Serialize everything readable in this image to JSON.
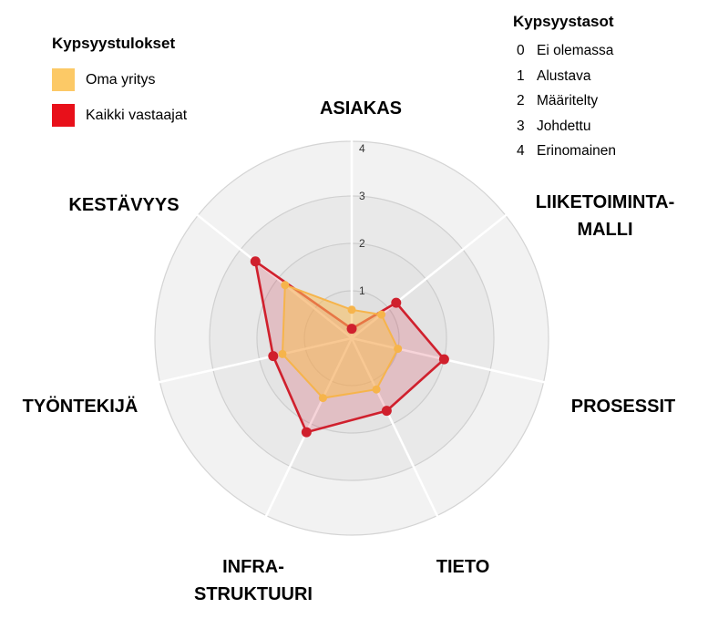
{
  "legend": {
    "title": "Kypsyystulokset",
    "items": [
      {
        "label": "Oma yritys",
        "color": "#fcc966"
      },
      {
        "label": "Kaikki vastaajat",
        "color": "#e8101a"
      }
    ]
  },
  "levels": {
    "title": "Kypsyystasot",
    "items": [
      {
        "num": "0",
        "label": "Ei olemassa"
      },
      {
        "num": "1",
        "label": "Alustava"
      },
      {
        "num": "2",
        "label": "Määritelty"
      },
      {
        "num": "3",
        "label": "Johdettu"
      },
      {
        "num": "4",
        "label": "Erinomainen"
      }
    ]
  },
  "chart_data": {
    "type": "radar",
    "axes": [
      {
        "lines": [
          "ASIAKAS"
        ]
      },
      {
        "lines": [
          "LIIKETOIMINTA-",
          "MALLI"
        ]
      },
      {
        "lines": [
          "PROSESSIT"
        ]
      },
      {
        "lines": [
          "TIETO"
        ]
      },
      {
        "lines": [
          "INFRA-",
          "STRUKTUURI"
        ]
      },
      {
        "lines": [
          "TYÖNTEKIJÄ"
        ]
      },
      {
        "lines": [
          "KESTÄVYYS"
        ]
      }
    ],
    "rlim": [
      0,
      4
    ],
    "ticks": [
      "1",
      "2",
      "3",
      "4"
    ],
    "series": [
      {
        "name": "Oma yritys",
        "values": [
          0.6,
          0.8,
          1.0,
          1.2,
          1.4,
          1.5,
          1.8
        ],
        "color": "#f6b44b"
      },
      {
        "name": "Kaikki vastaajat",
        "values": [
          0.2,
          1.2,
          2.0,
          1.7,
          2.2,
          1.7,
          2.6
        ],
        "color": "#d0202d"
      }
    ]
  }
}
